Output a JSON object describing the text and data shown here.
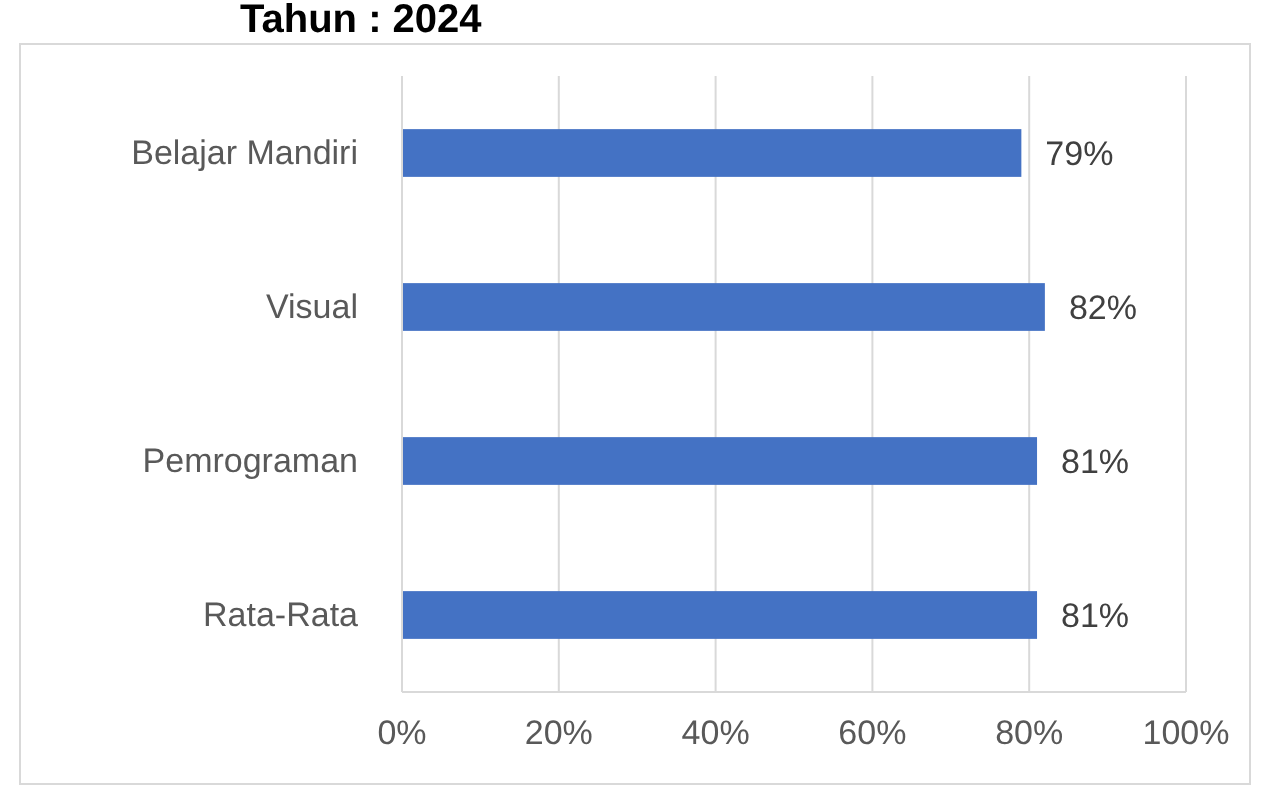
{
  "chart_data": {
    "type": "bar",
    "orientation": "horizontal",
    "title": "Tahun : 2024",
    "categories": [
      "Belajar Mandiri",
      "Visual",
      "Pemrograman",
      "Rata-Rata"
    ],
    "values": [
      79,
      82,
      81,
      81
    ],
    "color": "#4472c4",
    "value_labels": [
      "79%",
      "82%",
      "81%",
      "81%"
    ],
    "xlim": [
      0,
      100
    ],
    "xticks": [
      {
        "value": 0,
        "label": "0%"
      },
      {
        "value": 20,
        "label": "20%"
      },
      {
        "value": 40,
        "label": "40%"
      },
      {
        "value": 60,
        "label": "60%"
      },
      {
        "value": 80,
        "label": "80%"
      },
      {
        "value": 100,
        "label": "100%"
      }
    ],
    "grid": "x"
  }
}
